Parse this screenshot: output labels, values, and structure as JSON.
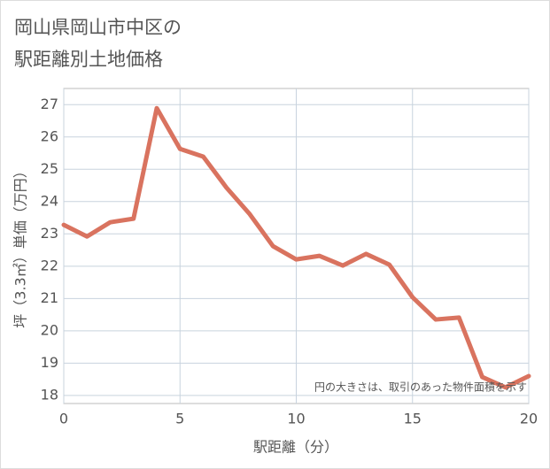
{
  "chart_data": {
    "type": "line",
    "title": [
      "岡山県岡山市中区の",
      "駅距離別土地価格"
    ],
    "x_label": "駅距離（分）",
    "y_label": "坪（3.3㎡）単価（万円）",
    "annotation": "円の大きさは、取引のあった物件面積を示す",
    "x": [
      0,
      1,
      2,
      3,
      4,
      5,
      6,
      7,
      8,
      9,
      10,
      11,
      12,
      13,
      14,
      15,
      16,
      17,
      18,
      19,
      20
    ],
    "series": [
      {
        "color": "#d9735f",
        "values": [
          23.28,
          22.92,
          23.36,
          23.47,
          26.89,
          25.63,
          25.39,
          24.43,
          23.61,
          22.62,
          22.21,
          22.32,
          22.02,
          22.38,
          22.05,
          21.04,
          20.35,
          20.41,
          18.57,
          18.25,
          18.6
        ]
      }
    ],
    "xlim": [
      0,
      20
    ],
    "xticks": [
      0,
      5,
      10,
      15,
      20
    ],
    "ylim": [
      17.75,
      27.5
    ],
    "yticks": [
      18,
      19,
      20,
      21,
      22,
      23,
      24,
      25,
      26,
      27
    ],
    "grid": true
  }
}
